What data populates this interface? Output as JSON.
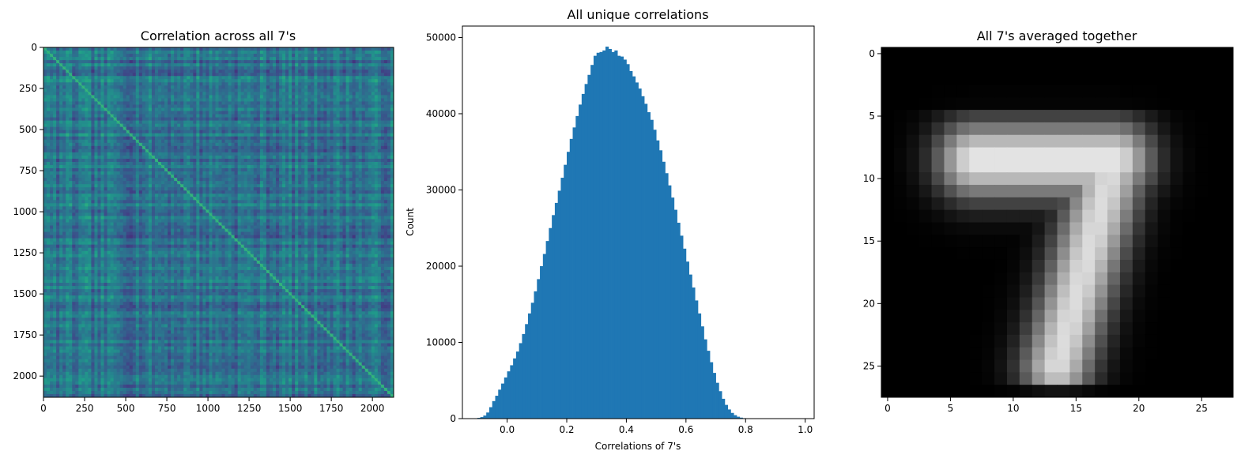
{
  "chart_data": [
    {
      "type": "heatmap",
      "title": "Correlation across all 7's",
      "xlabel": "",
      "ylabel": "",
      "xlim": [
        0,
        2129
      ],
      "ylim": [
        2129,
        0
      ],
      "xticks": [
        0,
        250,
        500,
        750,
        1000,
        1250,
        1500,
        1750,
        2000
      ],
      "yticks": [
        0,
        250,
        500,
        750,
        1000,
        1250,
        1500,
        1750,
        2000
      ],
      "colormap": "viridis",
      "diagonal_value": 1.0,
      "grid": false
    },
    {
      "type": "bar",
      "title": "All unique correlations",
      "xlabel": "Correlations of 7's",
      "ylabel": "Count",
      "xlim": [
        -0.15,
        1.03
      ],
      "ylim": [
        0,
        51500
      ],
      "xticks": [
        0.0,
        0.2,
        0.4,
        0.6,
        0.8,
        1.0
      ],
      "yticks": [
        0,
        10000,
        20000,
        30000,
        40000,
        50000
      ],
      "bin_start": -0.12,
      "bin_width": 0.01,
      "values": [
        20,
        50,
        100,
        200,
        400,
        800,
        1500,
        2300,
        3000,
        3800,
        4600,
        5400,
        6200,
        7000,
        7900,
        8800,
        9900,
        11100,
        12400,
        13800,
        15200,
        16700,
        18300,
        20000,
        21600,
        23300,
        25000,
        26700,
        28300,
        29900,
        31600,
        33300,
        35000,
        36700,
        38200,
        39700,
        41200,
        42600,
        43900,
        45100,
        46400,
        47600,
        48000,
        48100,
        48300,
        48800,
        48500,
        48100,
        48300,
        47600,
        47500,
        47100,
        46500,
        45600,
        44900,
        44100,
        43300,
        42300,
        41300,
        40200,
        39200,
        37900,
        36500,
        35200,
        33700,
        32200,
        30600,
        29000,
        27400,
        25700,
        24000,
        22300,
        20600,
        18900,
        17200,
        15500,
        13800,
        12100,
        10400,
        8900,
        7400,
        6000,
        4700,
        3600,
        2600,
        1800,
        1200,
        750,
        450,
        250,
        130,
        60,
        25,
        10,
        4
      ],
      "color": "#1f77b4",
      "grid": false
    },
    {
      "type": "heatmap",
      "title": "All 7's averaged together",
      "xlabel": "",
      "ylabel": "",
      "xlim": [
        -0.5,
        27.5
      ],
      "ylim": [
        27.5,
        -0.5
      ],
      "xticks": [
        0,
        5,
        10,
        15,
        20,
        25
      ],
      "yticks": [
        0,
        5,
        10,
        15,
        20,
        25
      ],
      "colormap": "gray",
      "grid": false
    }
  ]
}
